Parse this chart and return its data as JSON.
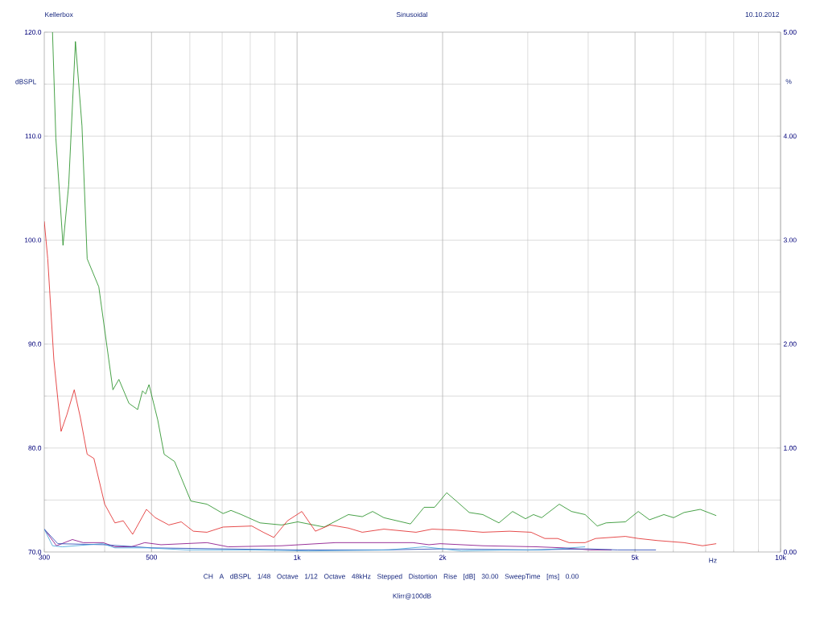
{
  "chart_data": {
    "type": "line",
    "title": "Sinusoidal",
    "ylabel": "dBSPL",
    "y2label": "%",
    "xlabel": "Hz",
    "annotations": [
      "Kellerbox",
      "10.10.2012",
      "CH A   dBSPL   1/48 Octave   1/12 Octave   48kHz   Stepped   Distortion Rise [dB] 30.00   SweepTime [ms] 0.00",
      "Klirr@100dB"
    ],
    "log": "x",
    "grid": true,
    "marker": "none",
    "xlim": [
      300,
      10000
    ],
    "xticks": [
      300,
      500,
      {
        "value": 1000,
        "label": "1k"
      },
      {
        "value": 2000,
        "label": "2k"
      },
      {
        "value": 5000,
        "label": "5k"
      },
      {
        "value": 10000,
        "label": "10k"
      }
    ],
    "ylim": [
      70,
      120
    ],
    "yticks": [
      {
        "value": 70,
        "label": "70.0"
      },
      {
        "value": 80,
        "label": "80.0"
      },
      {
        "value": 90,
        "label": "90.0"
      },
      {
        "value": 100,
        "label": "100.0"
      },
      {
        "value": 110,
        "label": "110.0"
      },
      {
        "value": 120,
        "label": "120.0"
      }
    ],
    "y2lim": [
      0,
      5
    ],
    "y2ticks": [
      {
        "value": 0,
        "label": "0.00"
      },
      {
        "value": 1,
        "label": "1.00"
      },
      {
        "value": 2,
        "label": "2.00"
      },
      {
        "value": 3,
        "label": "3.00"
      },
      {
        "value": 4,
        "label": "4.00"
      },
      {
        "value": 5,
        "label": "5.00"
      }
    ],
    "series": [
      {
        "color": "#1a8a1a",
        "axis": "y2",
        "x": [
          312,
          317,
          328,
          337,
          348,
          359,
          368,
          389,
          416,
          428,
          449,
          468,
          479,
          486,
          494,
          515,
          531,
          558,
          603,
          651,
          703,
          730,
          767,
          838,
          929,
          1003,
          1138,
          1277,
          1364,
          1433,
          1512,
          1716,
          1831,
          1925,
          2039,
          2135,
          2270,
          2422,
          2615,
          2791,
          2968,
          3083,
          3205,
          3486,
          3694,
          3943,
          4177,
          4356,
          4776,
          5078,
          5357,
          5737,
          6009,
          6315,
          6820,
          7362
        ],
        "values": [
          5.0,
          3.98,
          2.95,
          3.53,
          4.91,
          4.1,
          2.82,
          2.55,
          1.56,
          1.66,
          1.43,
          1.37,
          1.55,
          1.52,
          1.61,
          1.27,
          0.94,
          0.87,
          0.49,
          0.46,
          0.37,
          0.4,
          0.36,
          0.28,
          0.26,
          0.29,
          0.24,
          0.36,
          0.34,
          0.39,
          0.33,
          0.27,
          0.43,
          0.43,
          0.57,
          0.49,
          0.38,
          0.36,
          0.28,
          0.39,
          0.32,
          0.36,
          0.33,
          0.46,
          0.39,
          0.36,
          0.25,
          0.28,
          0.29,
          0.39,
          0.31,
          0.36,
          0.33,
          0.38,
          0.41,
          0.35
        ]
      },
      {
        "color": "#e02020",
        "axis": "y2",
        "x": [
          300,
          305,
          314,
          325,
          334,
          346,
          356,
          368,
          380,
          400,
          420,
          437,
          457,
          488,
          509,
          543,
          576,
          610,
          651,
          703,
          806,
          851,
          895,
          955,
          1023,
          1091,
          1169,
          1277,
          1364,
          1512,
          1762,
          1903,
          2135,
          2422,
          2749,
          3048,
          3254,
          3459,
          3652,
          3943,
          4144,
          4776,
          5078,
          5565,
          6315,
          6897,
          7362
        ],
        "values": [
          3.18,
          2.82,
          1.85,
          1.16,
          1.32,
          1.56,
          1.3,
          0.94,
          0.9,
          0.46,
          0.28,
          0.3,
          0.17,
          0.41,
          0.33,
          0.26,
          0.29,
          0.2,
          0.19,
          0.24,
          0.25,
          0.19,
          0.14,
          0.3,
          0.39,
          0.2,
          0.26,
          0.23,
          0.19,
          0.22,
          0.19,
          0.22,
          0.21,
          0.19,
          0.2,
          0.19,
          0.13,
          0.13,
          0.09,
          0.09,
          0.13,
          0.15,
          0.13,
          0.11,
          0.09,
          0.06,
          0.08
        ]
      },
      {
        "color": "#800080",
        "axis": "y2",
        "x": [
          300,
          318,
          343,
          361,
          397,
          420,
          454,
          484,
          523,
          651,
          720,
          929,
          1201,
          1547,
          1736,
          1874,
          1977,
          2422,
          3131,
          3554,
          4034,
          4474
        ],
        "values": [
          0.22,
          0.06,
          0.12,
          0.09,
          0.09,
          0.05,
          0.05,
          0.09,
          0.07,
          0.09,
          0.05,
          0.06,
          0.09,
          0.09,
          0.09,
          0.07,
          0.08,
          0.06,
          0.05,
          0.04,
          0.02,
          0.02
        ]
      },
      {
        "color": "#1a3cb0",
        "axis": "y2",
        "x": [
          300,
          320,
          400,
          500,
          700,
          1000,
          1500,
          2000,
          3000,
          4000,
          4600,
          5524
        ],
        "values": [
          0.22,
          0.08,
          0.07,
          0.04,
          0.03,
          0.02,
          0.02,
          0.03,
          0.02,
          0.03,
          0.02,
          0.02
        ]
      },
      {
        "color": "#3aa0d8",
        "axis": "y2",
        "x": [
          300,
          312,
          327,
          396,
          420,
          490,
          591,
          819,
          1055,
          1547,
          1831,
          2000,
          2185,
          2686,
          3205,
          3943
        ],
        "values": [
          0.22,
          0.06,
          0.05,
          0.08,
          0.04,
          0.04,
          0.02,
          0.02,
          0.01,
          0.02,
          0.05,
          0.03,
          0.01,
          0.02,
          0.02,
          0.05
        ]
      }
    ]
  }
}
